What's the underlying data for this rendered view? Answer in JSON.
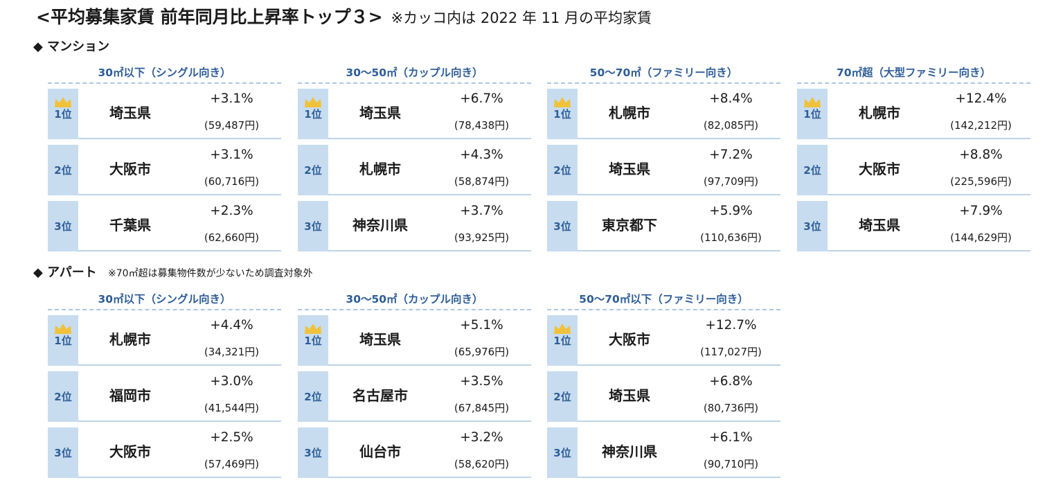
{
  "header": {
    "title": "<平均募集家賃 前年同月比上昇率トップ３>",
    "note": "※カッコ内は 2022 年 11 月の平均家賃"
  },
  "sections": [
    {
      "label": "◆ マンション",
      "note": "",
      "panels": [
        {
          "header": "30㎡以下（シングル向き）",
          "rows": [
            {
              "rank": "1位",
              "area": "埼玉県",
              "rate": "+3.1%",
              "rent": "(59,487円)"
            },
            {
              "rank": "2位",
              "area": "大阪市",
              "rate": "+3.1%",
              "rent": "(60,716円)"
            },
            {
              "rank": "3位",
              "area": "千葉県",
              "rate": "+2.3%",
              "rent": "(62,660円)"
            }
          ]
        },
        {
          "header": "30～50㎡（カップル向き）",
          "rows": [
            {
              "rank": "1位",
              "area": "埼玉県",
              "rate": "+6.7%",
              "rent": "(78,438円)"
            },
            {
              "rank": "2位",
              "area": "札幌市",
              "rate": "+4.3%",
              "rent": "(58,874円)"
            },
            {
              "rank": "3位",
              "area": "神奈川県",
              "rate": "+3.7%",
              "rent": "(93,925円)"
            }
          ]
        },
        {
          "header": "50～70㎡（ファミリー向き）",
          "rows": [
            {
              "rank": "1位",
              "area": "札幌市",
              "rate": "+8.4%",
              "rent": "(82,085円)"
            },
            {
              "rank": "2位",
              "area": "埼玉県",
              "rate": "+7.2%",
              "rent": "(97,709円)"
            },
            {
              "rank": "3位",
              "area": "東京都下",
              "rate": "+5.9%",
              "rent": "(110,636円)"
            }
          ]
        },
        {
          "header": "70㎡超（大型ファミリー向き）",
          "rows": [
            {
              "rank": "1位",
              "area": "札幌市",
              "rate": "+12.4%",
              "rent": "(142,212円)"
            },
            {
              "rank": "2位",
              "area": "大阪市",
              "rate": "+8.8%",
              "rent": "(225,596円)"
            },
            {
              "rank": "3位",
              "area": "埼玉県",
              "rate": "+7.9%",
              "rent": "(144,629円)"
            }
          ]
        }
      ]
    },
    {
      "label": "◆ アパート",
      "note": "※70㎡超は募集物件数が少ないため調査対象外",
      "panels": [
        {
          "header": "30㎡以下（シングル向き）",
          "rows": [
            {
              "rank": "1位",
              "area": "札幌市",
              "rate": "+4.4%",
              "rent": "(34,321円)"
            },
            {
              "rank": "2位",
              "area": "福岡市",
              "rate": "+3.0%",
              "rent": "(41,544円)"
            },
            {
              "rank": "3位",
              "area": "大阪市",
              "rate": "+2.5%",
              "rent": "(57,469円)"
            }
          ]
        },
        {
          "header": "30～50㎡（カップル向き）",
          "rows": [
            {
              "rank": "1位",
              "area": "埼玉県",
              "rate": "+5.1%",
              "rent": "(65,976円)"
            },
            {
              "rank": "2位",
              "area": "名古屋市",
              "rate": "+3.5%",
              "rent": "(67,845円)"
            },
            {
              "rank": "3位",
              "area": "仙台市",
              "rate": "+3.2%",
              "rent": "(58,620円)"
            }
          ]
        },
        {
          "header": "50～70㎡以下（ファミリー向き）",
          "rows": [
            {
              "rank": "1位",
              "area": "大阪市",
              "rate": "+12.7%",
              "rent": "(117,027円)"
            },
            {
              "rank": "2位",
              "area": "埼玉県",
              "rate": "+6.8%",
              "rent": "(80,736円)"
            },
            {
              "rank": "3位",
              "area": "神奈川県",
              "rate": "+6.1%",
              "rent": "(90,710円)"
            }
          ]
        }
      ]
    }
  ],
  "chart_data": {
    "type": "table",
    "title": "<平均募集家賃 前年同月比上昇率トップ３>",
    "note": "※カッコ内は 2022 年 11 月の平均家賃",
    "tables": [
      {
        "group": "マンション",
        "category": "30㎡以下（シングル向き）",
        "columns": [
          "rank",
          "area",
          "rate_pct",
          "rent_yen"
        ],
        "rows": [
          [
            1,
            "埼玉県",
            3.1,
            59487
          ],
          [
            2,
            "大阪市",
            3.1,
            60716
          ],
          [
            3,
            "千葉県",
            2.3,
            62660
          ]
        ]
      },
      {
        "group": "マンション",
        "category": "30～50㎡（カップル向き）",
        "columns": [
          "rank",
          "area",
          "rate_pct",
          "rent_yen"
        ],
        "rows": [
          [
            1,
            "埼玉県",
            6.7,
            78438
          ],
          [
            2,
            "札幌市",
            4.3,
            58874
          ],
          [
            3,
            "神奈川県",
            3.7,
            93925
          ]
        ]
      },
      {
        "group": "マンション",
        "category": "50～70㎡（ファミリー向き）",
        "columns": [
          "rank",
          "area",
          "rate_pct",
          "rent_yen"
        ],
        "rows": [
          [
            1,
            "札幌市",
            8.4,
            82085
          ],
          [
            2,
            "埼玉県",
            7.2,
            97709
          ],
          [
            3,
            "東京都下",
            5.9,
            110636
          ]
        ]
      },
      {
        "group": "マンション",
        "category": "70㎡超（大型ファミリー向き）",
        "columns": [
          "rank",
          "area",
          "rate_pct",
          "rent_yen"
        ],
        "rows": [
          [
            1,
            "札幌市",
            12.4,
            142212
          ],
          [
            2,
            "大阪市",
            8.8,
            225596
          ],
          [
            3,
            "埼玉県",
            7.9,
            144629
          ]
        ]
      },
      {
        "group": "アパート",
        "category": "30㎡以下（シングル向き）",
        "columns": [
          "rank",
          "area",
          "rate_pct",
          "rent_yen"
        ],
        "rows": [
          [
            1,
            "札幌市",
            4.4,
            34321
          ],
          [
            2,
            "福岡市",
            3.0,
            41544
          ],
          [
            3,
            "大阪市",
            2.5,
            57469
          ]
        ]
      },
      {
        "group": "アパート",
        "category": "30～50㎡（カップル向き）",
        "columns": [
          "rank",
          "area",
          "rate_pct",
          "rent_yen"
        ],
        "rows": [
          [
            1,
            "埼玉県",
            5.1,
            65976
          ],
          [
            2,
            "名古屋市",
            3.5,
            67845
          ],
          [
            3,
            "仙台市",
            3.2,
            58620
          ]
        ]
      },
      {
        "group": "アパート",
        "category": "50～70㎡以下（ファミリー向き）",
        "columns": [
          "rank",
          "area",
          "rate_pct",
          "rent_yen"
        ],
        "rows": [
          [
            1,
            "大阪市",
            12.7,
            117027
          ],
          [
            2,
            "埼玉県",
            6.8,
            80736
          ],
          [
            3,
            "神奈川県",
            6.1,
            90710
          ]
        ]
      }
    ]
  }
}
